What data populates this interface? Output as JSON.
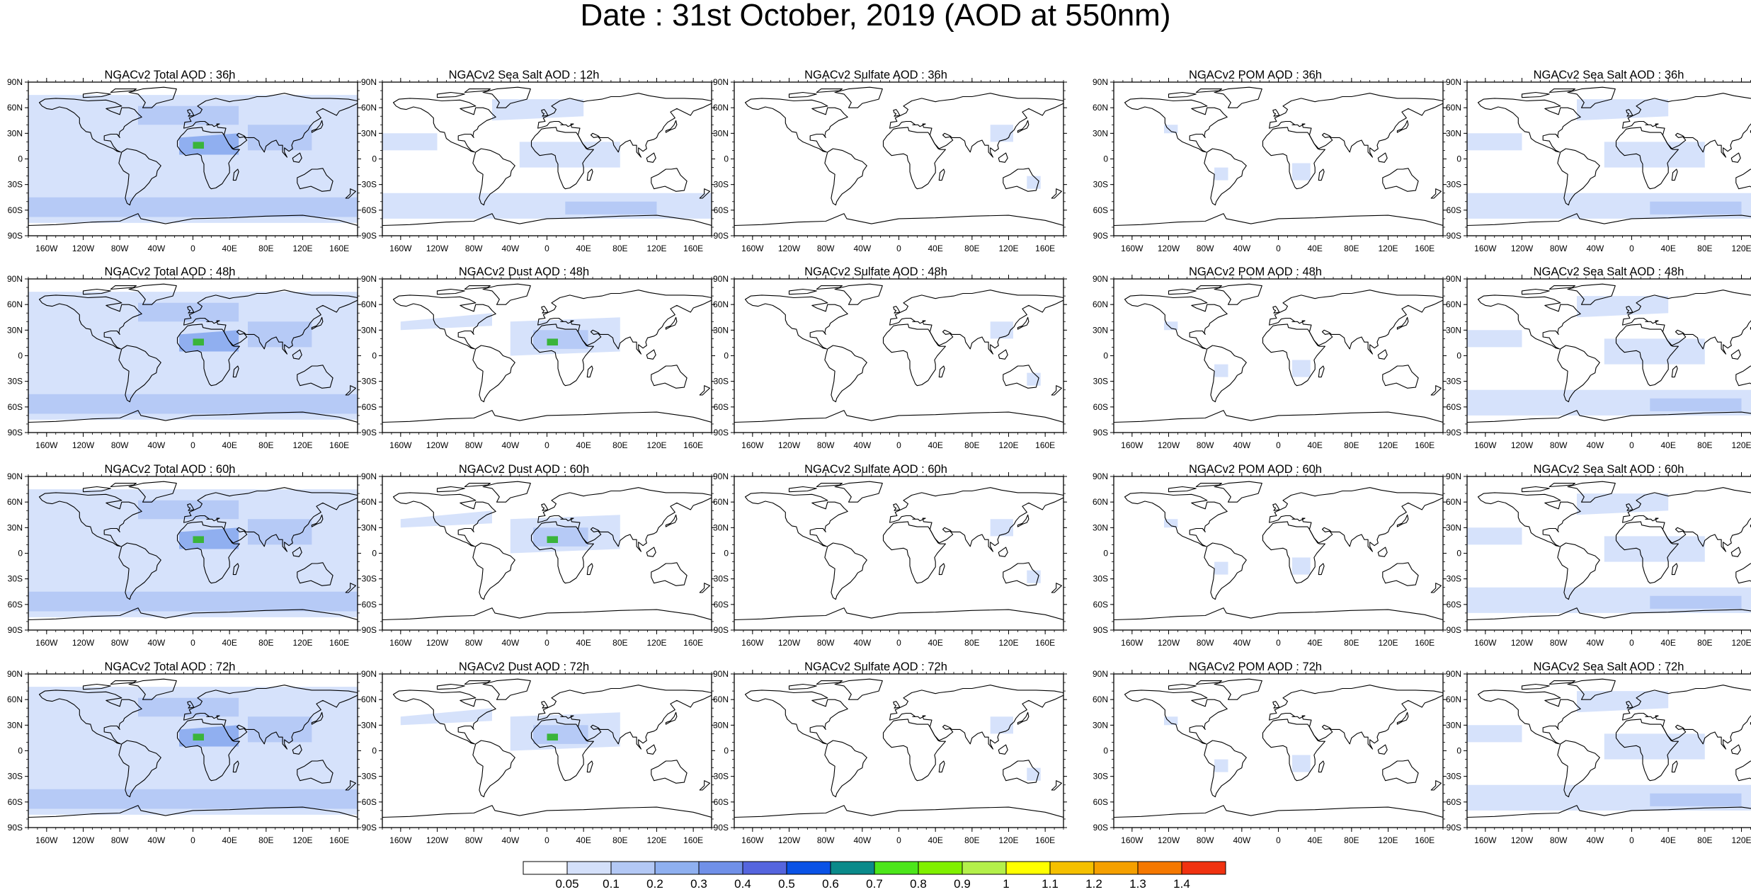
{
  "title": "Date : 31st October, 2019 (AOD at 550nm)",
  "lat_labels": [
    "90N",
    "60N",
    "30N",
    "0",
    "30S",
    "60S",
    "90S"
  ],
  "lon_labels": [
    "160W",
    "120W",
    "80W",
    "40W",
    "0",
    "40E",
    "80E",
    "120E",
    "160E"
  ],
  "rows": [
    [
      "NGACv2 Total AOD : 36h",
      "NGACv2 Sea Salt  AOD : 12h",
      "NGACv2 Sulfate AOD : 36h",
      "NGACv2 POM AOD : 36h",
      "NGACv2 Sea Salt AOD : 36h"
    ],
    [
      "NGACv2 Total AOD : 48h",
      "NGACv2 Dust AOD : 48h",
      "NGACv2 Sulfate AOD : 48h",
      "NGACv2 POM AOD : 48h",
      "NGACv2 Sea Salt AOD : 48h"
    ],
    [
      "NGACv2 Total AOD : 60h",
      "NGACv2 Dust AOD : 60h",
      "NGACv2 Sulfate AOD : 60h",
      "NGACv2 POM AOD : 60h",
      "NGACv2 Sea Salt AOD : 60h"
    ],
    [
      "NGACv2 Total AOD : 72h",
      "NGACv2 Dust AOD : 72h",
      "NGACv2 Sulfate AOD : 72h",
      "NGACv2 POM AOD : 72h",
      "NGACv2 Sea Salt  AOD : 72h"
    ]
  ],
  "colorbar": {
    "labels": [
      "0.05",
      "0.1",
      "0.2",
      "0.3",
      "0.4",
      "0.5",
      "0.6",
      "0.7",
      "0.8",
      "0.9",
      "1",
      "1.1",
      "1.2",
      "1.3",
      "1.4"
    ],
    "colors": [
      "#ffffff",
      "#d4e0fa",
      "#b3c8f5",
      "#8fb0f0",
      "#7090e8",
      "#5565de",
      "#0a52e6",
      "#0a8a8a",
      "#4ce61a",
      "#80f000",
      "#b4f04a",
      "#ffff00",
      "#f5c000",
      "#f5a000",
      "#f57800",
      "#f03210"
    ]
  },
  "shade_colors": {
    "light": "#d6e2fb",
    "medium": "#b6caf6",
    "strong": "#90aff0",
    "dust_green": "#3ab43a"
  }
}
